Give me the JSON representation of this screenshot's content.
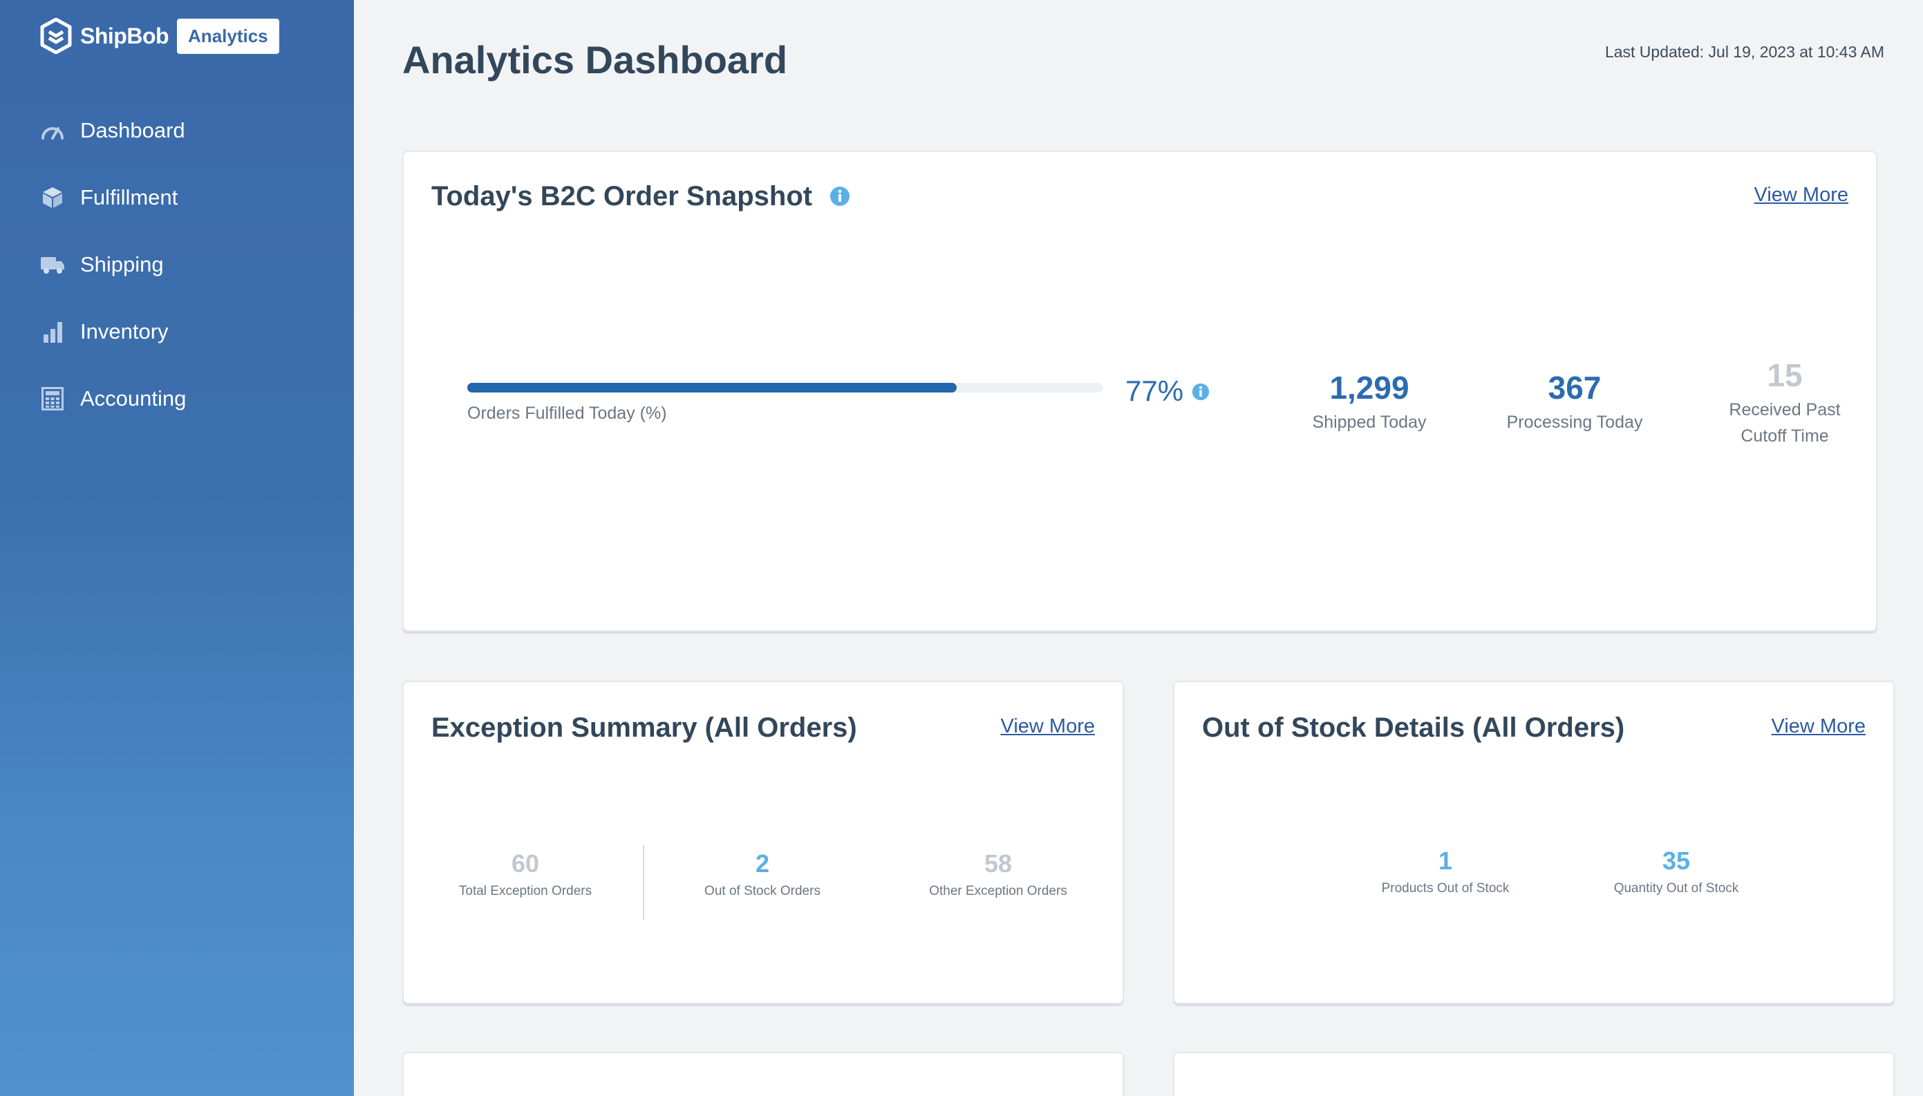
{
  "sidebar": {
    "brand_name": "ShipBob",
    "brand_badge": "Analytics",
    "items": [
      {
        "label": "Dashboard",
        "icon": "speedometer-icon"
      },
      {
        "label": "Fulfillment",
        "icon": "box-icon"
      },
      {
        "label": "Shipping",
        "icon": "truck-icon"
      },
      {
        "label": "Inventory",
        "icon": "bar-chart-icon"
      },
      {
        "label": "Accounting",
        "icon": "calculator-icon"
      }
    ]
  },
  "header": {
    "title": "Analytics Dashboard",
    "last_updated": "Last Updated: Jul 19, 2023 at 10:43 AM"
  },
  "snapshot": {
    "title": "Today's B2C Order Snapshot",
    "view_more": "View More",
    "progress_label": "Orders Fulfilled Today (%)",
    "progress_value": 0.77,
    "percent_text": "77%",
    "stats": [
      {
        "value": "1,299",
        "label": "Shipped Today"
      },
      {
        "value": "367",
        "label": "Processing Today"
      },
      {
        "value": "15",
        "label_line1": "Received Past",
        "label_line2": "Cutoff Time"
      }
    ]
  },
  "exception": {
    "title": "Exception Summary (All Orders)",
    "view_more": "View More",
    "stats": [
      {
        "value": "60",
        "label": "Total Exception Orders"
      },
      {
        "value": "2",
        "label": "Out of Stock Orders"
      },
      {
        "value": "58",
        "label": "Other Exception Orders"
      }
    ]
  },
  "out_of_stock": {
    "title": "Out of Stock Details (All Orders)",
    "view_more": "View More",
    "stats": [
      {
        "value": "1",
        "label": "Products Out of Stock"
      },
      {
        "value": "35",
        "label": "Quantity Out of Stock"
      }
    ]
  },
  "colors": {
    "sidebar": "#3a69a9",
    "accent": "#2b6bb0",
    "highlight": "#5ab0e6",
    "muted": "#c2c8cf"
  }
}
